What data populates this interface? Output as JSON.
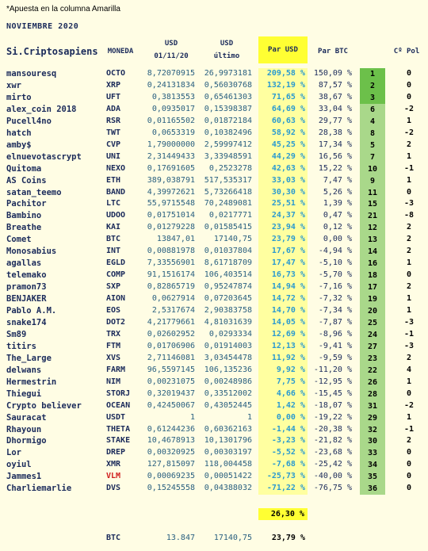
{
  "note": "*Apuesta en la columna Amarilla",
  "month": "NOVIEMBRE 2020",
  "headers": {
    "name": "Si.Criptosapiens",
    "moneda": "MONEDA",
    "usd1_top": "USD",
    "usd1_bottom": "01/11/20",
    "usd2_top": "USD",
    "usd2_bottom": "último",
    "par_usd": "Par USD",
    "par_btc": "Par BTC",
    "pol": "Cº Pol"
  },
  "colors": {
    "rank_dark": "#6cc04a",
    "rank_light": "#a9d88a",
    "par_bg": "#ffff33",
    "par_col": "#ffffa0",
    "red_coin": "#d02020"
  },
  "rows": [
    {
      "name": "mansouresq",
      "coin": "OCTO",
      "usd1": "8,72070915",
      "usd2": "26,9973181",
      "par": "209,58 %",
      "pbtc": "150,09 %",
      "rank": "1",
      "pol": "0"
    },
    {
      "name": "xwr",
      "coin": "XRP",
      "usd1": "0,24131834",
      "usd2": "0,56030768",
      "par": "132,19 %",
      "pbtc": "87,57 %",
      "rank": "2",
      "pol": "0"
    },
    {
      "name": "mirto",
      "coin": "UFT",
      "usd1": "0,3813553",
      "usd2": "0,65461303",
      "par": "71,65 %",
      "pbtc": "38,67 %",
      "rank": "3",
      "pol": "0"
    },
    {
      "name": "alex_coin 2018",
      "coin": "ADA",
      "usd1": "0,0935017",
      "usd2": "0,15398387",
      "par": "64,69 %",
      "pbtc": "33,04 %",
      "rank": "6",
      "pol": "-2"
    },
    {
      "name": "Pucell4no",
      "coin": "RSR",
      "usd1": "0,01165502",
      "usd2": "0,01872184",
      "par": "60,63 %",
      "pbtc": "29,77 %",
      "rank": "4",
      "pol": "1"
    },
    {
      "name": "hatch",
      "coin": "TWT",
      "usd1": "0,0653319",
      "usd2": "0,10382496",
      "par": "58,92 %",
      "pbtc": "28,38 %",
      "rank": "8",
      "pol": "-2"
    },
    {
      "name": "amby$",
      "coin": "CVP",
      "usd1": "1,79000000",
      "usd2": "2,59997412",
      "par": "45,25 %",
      "pbtc": "17,34 %",
      "rank": "5",
      "pol": "2"
    },
    {
      "name": "elnuevotascrypt",
      "coin": "UNI",
      "usd1": "2,31449433",
      "usd2": "3,33948591",
      "par": "44,29 %",
      "pbtc": "16,56 %",
      "rank": "7",
      "pol": "1"
    },
    {
      "name": "Quitoma",
      "coin": "NEXO",
      "usd1": "0,17691605",
      "usd2": "0,2523278",
      "par": "42,63 %",
      "pbtc": "15,22 %",
      "rank": "10",
      "pol": "-1"
    },
    {
      "name": "AS Coins",
      "coin": "ETH",
      "usd1": "389,038791",
      "usd2": "517,535317",
      "par": "33,03 %",
      "pbtc": "7,47 %",
      "rank": "9",
      "pol": "1"
    },
    {
      "name": "satan_teemo",
      "coin": "BAND",
      "usd1": "4,39972621",
      "usd2": "5,73266418",
      "par": "30,30 %",
      "pbtc": "5,26 %",
      "rank": "11",
      "pol": "0"
    },
    {
      "name": "Pachitor",
      "coin": "LTC",
      "usd1": "55,9715548",
      "usd2": "70,2489081",
      "par": "25,51 %",
      "pbtc": "1,39 %",
      "rank": "15",
      "pol": "-3"
    },
    {
      "name": "Bambino",
      "coin": "UDOO",
      "usd1": "0,01751014",
      "usd2": "0,0217771",
      "par": "24,37 %",
      "pbtc": "0,47 %",
      "rank": "21",
      "pol": "-8"
    },
    {
      "name": "Breathe",
      "coin": "KAI",
      "usd1": "0,01279228",
      "usd2": "0,01585415",
      "par": "23,94 %",
      "pbtc": "0,12 %",
      "rank": "12",
      "pol": "2"
    },
    {
      "name": "Comet",
      "coin": "BTC",
      "usd1": "13847,01",
      "usd2": "17140,75",
      "par": "23,79 %",
      "pbtc": "0,00 %",
      "rank": "13",
      "pol": "2"
    },
    {
      "name": "Monosabius",
      "coin": "INT",
      "usd1": "0,00881978",
      "usd2": "0,01037804",
      "par": "17,67 %",
      "pbtc": "-4,94 %",
      "rank": "14",
      "pol": "2"
    },
    {
      "name": "agallas",
      "coin": "EGLD",
      "usd1": "7,33556901",
      "usd2": "8,61718709",
      "par": "17,47 %",
      "pbtc": "-5,10 %",
      "rank": "16",
      "pol": "1"
    },
    {
      "name": "telemako",
      "coin": "COMP",
      "usd1": "91,1516174",
      "usd2": "106,403514",
      "par": "16,73 %",
      "pbtc": "-5,70 %",
      "rank": "18",
      "pol": "0"
    },
    {
      "name": "pramon73",
      "coin": "SXP",
      "usd1": "0,82865719",
      "usd2": "0,95247874",
      "par": "14,94 %",
      "pbtc": "-7,16 %",
      "rank": "17",
      "pol": "2"
    },
    {
      "name": "BENJAKER",
      "coin": "AION",
      "usd1": "0,0627914",
      "usd2": "0,07203645",
      "par": "14,72 %",
      "pbtc": "-7,32 %",
      "rank": "19",
      "pol": "1"
    },
    {
      "name": "Pablo A.M.",
      "coin": "EOS",
      "usd1": "2,5317674",
      "usd2": "2,90383758",
      "par": "14,70 %",
      "pbtc": "-7,34 %",
      "rank": "20",
      "pol": "1"
    },
    {
      "name": "snake174",
      "coin": "DOT2",
      "usd1": "4,21779661",
      "usd2": "4,81031639",
      "par": "14,05 %",
      "pbtc": "-7,87 %",
      "rank": "25",
      "pol": "-3"
    },
    {
      "name": "Sm89",
      "coin": "TRX",
      "usd1": "0,02602952",
      "usd2": "0,0293334",
      "par": "12,69 %",
      "pbtc": "-8,96 %",
      "rank": "24",
      "pol": "-1"
    },
    {
      "name": "titirs",
      "coin": "FTM",
      "usd1": "0,01706906",
      "usd2": "0,01914003",
      "par": "12,13 %",
      "pbtc": "-9,41 %",
      "rank": "27",
      "pol": "-3"
    },
    {
      "name": "The_Large",
      "coin": "XVS",
      "usd1": "2,71146081",
      "usd2": "3,03454478",
      "par": "11,92 %",
      "pbtc": "-9,59 %",
      "rank": "23",
      "pol": "2"
    },
    {
      "name": "delwans",
      "coin": "FARM",
      "usd1": "96,5597145",
      "usd2": "106,135236",
      "par": "9,92 %",
      "pbtc": "-11,20 %",
      "rank": "22",
      "pol": "4"
    },
    {
      "name": "Hermestrin",
      "coin": "NIM",
      "usd1": "0,00231075",
      "usd2": "0,00248986",
      "par": "7,75 %",
      "pbtc": "-12,95 %",
      "rank": "26",
      "pol": "1"
    },
    {
      "name": "Thiegui",
      "coin": "STORJ",
      "usd1": "0,32019437",
      "usd2": "0,33512002",
      "par": "4,66 %",
      "pbtc": "-15,45 %",
      "rank": "28",
      "pol": "0"
    },
    {
      "name": "Crypto believer",
      "coin": "OCEAN",
      "usd1": "0,42450067",
      "usd2": "0,43052445",
      "par": "1,42 %",
      "pbtc": "-18,07 %",
      "rank": "31",
      "pol": "-2"
    },
    {
      "name": "Sauracat",
      "coin": "USDT",
      "usd1": "1",
      "usd2": "1",
      "par": "0,00 %",
      "pbtc": "-19,22 %",
      "rank": "29",
      "pol": "1"
    },
    {
      "name": "Rhayoun",
      "coin": "THETA",
      "usd1": "0,61244236",
      "usd2": "0,60362163",
      "par": "-1,44 %",
      "pbtc": "-20,38 %",
      "rank": "32",
      "pol": "-1"
    },
    {
      "name": "Dhormigo",
      "coin": "STAKE",
      "usd1": "10,4678913",
      "usd2": "10,1301796",
      "par": "-3,23 %",
      "pbtc": "-21,82 %",
      "rank": "30",
      "pol": "2"
    },
    {
      "name": "Lor",
      "coin": "DREP",
      "usd1": "0,00320925",
      "usd2": "0,00303197",
      "par": "-5,52 %",
      "pbtc": "-23,68 %",
      "rank": "33",
      "pol": "0"
    },
    {
      "name": "oyiul",
      "coin": "XMR",
      "usd1": "127,815097",
      "usd2": "118,004458",
      "par": "-7,68 %",
      "pbtc": "-25,42 %",
      "rank": "34",
      "pol": "0"
    },
    {
      "name": "Jammes1",
      "coin": "VLM",
      "coin_red": true,
      "usd1": "0,00069235",
      "usd2": "0,00051422",
      "par": "-25,73 %",
      "pbtc": "-40,00 %",
      "rank": "35",
      "pol": "0"
    },
    {
      "name": "Charliemarlie",
      "coin": "DVS",
      "usd1": "0,15245558",
      "usd2": "0,04388032",
      "par": "-71,22 %",
      "pbtc": "-76,75 %",
      "rank": "36",
      "pol": "0"
    }
  ],
  "total_par": "26,30 %",
  "btc": {
    "label": "BTC",
    "usd1": "13.847",
    "usd2": "17140,75",
    "par": "23,79 %"
  }
}
